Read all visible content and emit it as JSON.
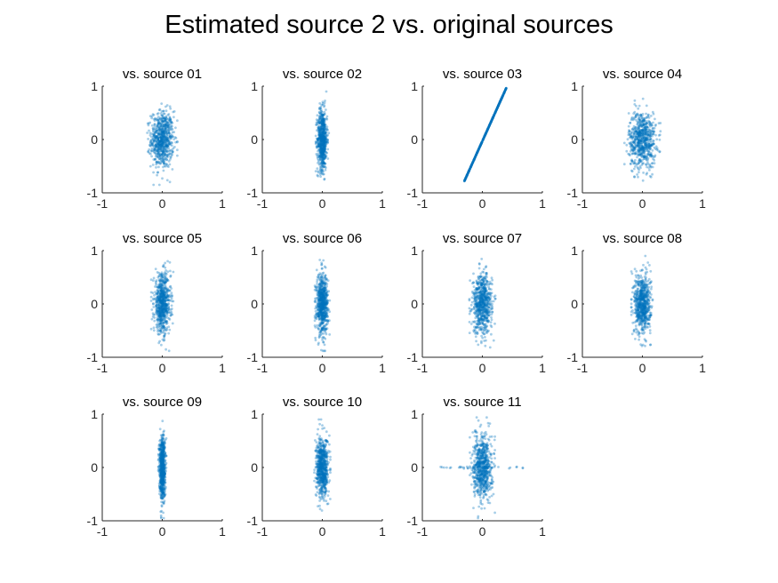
{
  "figure": {
    "title": "Estimated source 2 vs. original sources"
  },
  "style": {
    "marker_color": "#0072BD",
    "axis_color": "#262626"
  },
  "chart_data": [
    {
      "type": "scatter",
      "title": "vs. source 01",
      "xlim": [
        -1,
        1
      ],
      "ylim": [
        -1,
        1
      ],
      "xticks": [
        "-1",
        "0",
        "1"
      ],
      "yticks": [
        "-1",
        "0",
        "1"
      ],
      "pattern": "cloud",
      "x_spread": 0.3,
      "y_spread": 0.85
    },
    {
      "type": "scatter",
      "title": "vs. source 02",
      "xlim": [
        -1,
        1
      ],
      "ylim": [
        -1,
        1
      ],
      "xticks": [
        "-1",
        "0",
        "1"
      ],
      "yticks": [
        "-1",
        "0",
        "1"
      ],
      "pattern": "cloud",
      "x_spread": 0.13,
      "y_spread": 0.9
    },
    {
      "type": "scatter",
      "title": "vs. source 03",
      "xlim": [
        -1,
        1
      ],
      "ylim": [
        -1,
        1
      ],
      "xticks": [
        "-1",
        "0",
        "1"
      ],
      "yticks": [
        "-1",
        "0",
        "1"
      ],
      "pattern": "line",
      "x_range": [
        -0.3,
        0.4
      ],
      "y_range": [
        -0.78,
        0.97
      ]
    },
    {
      "type": "scatter",
      "title": "vs. source 04",
      "xlim": [
        -1,
        1
      ],
      "ylim": [
        -1,
        1
      ],
      "xticks": [
        "-1",
        "0",
        "1"
      ],
      "yticks": [
        "-1",
        "0",
        "1"
      ],
      "pattern": "cloud",
      "x_spread": 0.36,
      "y_spread": 0.85
    },
    {
      "type": "scatter",
      "title": "vs. source 05",
      "xlim": [
        -1,
        1
      ],
      "ylim": [
        -1,
        1
      ],
      "xticks": [
        "-1",
        "0",
        "1"
      ],
      "yticks": [
        "-1",
        "0",
        "1"
      ],
      "pattern": "cloud",
      "x_spread": 0.22,
      "y_spread": 0.88
    },
    {
      "type": "scatter",
      "title": "vs. source 06",
      "xlim": [
        -1,
        1
      ],
      "ylim": [
        -1,
        1
      ],
      "xticks": [
        "-1",
        "0",
        "1"
      ],
      "yticks": [
        "-1",
        "0",
        "1"
      ],
      "pattern": "cloud",
      "x_spread": 0.15,
      "y_spread": 0.88
    },
    {
      "type": "scatter",
      "title": "vs. source 07",
      "xlim": [
        -1,
        1
      ],
      "ylim": [
        -1,
        1
      ],
      "xticks": [
        "-1",
        "0",
        "1"
      ],
      "yticks": [
        "-1",
        "0",
        "1"
      ],
      "pattern": "cloud",
      "x_spread": 0.26,
      "y_spread": 0.88
    },
    {
      "type": "scatter",
      "title": "vs. source 08",
      "xlim": [
        -1,
        1
      ],
      "ylim": [
        -1,
        1
      ],
      "xticks": [
        "-1",
        "0",
        "1"
      ],
      "yticks": [
        "-1",
        "0",
        "1"
      ],
      "pattern": "cloud",
      "x_spread": 0.22,
      "y_spread": 0.9
    },
    {
      "type": "scatter",
      "title": "vs. source 09",
      "xlim": [
        -1,
        1
      ],
      "ylim": [
        -1,
        1
      ],
      "xticks": [
        "-1",
        "0",
        "1"
      ],
      "yticks": [
        "-1",
        "0",
        "1"
      ],
      "pattern": "cloud",
      "x_spread": 0.08,
      "y_spread": 0.95
    },
    {
      "type": "scatter",
      "title": "vs. source 10",
      "xlim": [
        -1,
        1
      ],
      "ylim": [
        -1,
        1
      ],
      "xticks": [
        "-1",
        "0",
        "1"
      ],
      "yticks": [
        "-1",
        "0",
        "1"
      ],
      "pattern": "cloud",
      "x_spread": 0.16,
      "y_spread": 0.9
    },
    {
      "type": "scatter",
      "title": "vs. source 11",
      "xlim": [
        -1,
        1
      ],
      "ylim": [
        -1,
        1
      ],
      "xticks": [
        "-1",
        "0",
        "1"
      ],
      "yticks": [
        "-1",
        "0",
        "1"
      ],
      "pattern": "cloud",
      "x_spread": 0.25,
      "y_spread": 0.95,
      "x_outlier_range": [
        -0.7,
        0.7
      ]
    }
  ]
}
